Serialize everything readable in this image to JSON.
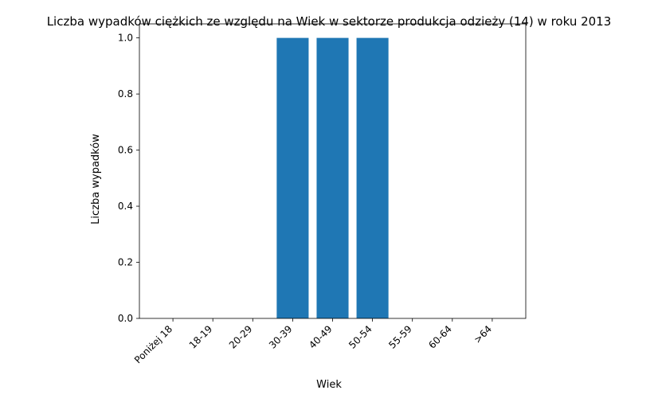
{
  "chart_data": {
    "type": "bar",
    "title": "Liczba wypadków ciężkich ze względu na Wiek w sektorze produkcja odzieży  (14)   w roku 2013",
    "xlabel": "Wiek",
    "ylabel": "Liczba wypadków",
    "categories": [
      "Poniżej 18",
      "18-19",
      "20-29",
      "30-39",
      "40-49",
      "50-54",
      "55-59",
      "60-64",
      ">64"
    ],
    "values": [
      0,
      0,
      0,
      1,
      1,
      1,
      0,
      0,
      0
    ],
    "ylim": [
      0,
      1.05
    ],
    "yticks": [
      "0.0",
      "0.2",
      "0.4",
      "0.6",
      "0.8",
      "1.0"
    ],
    "bar_color": "#1f77b4",
    "grid": false,
    "legend": "none"
  }
}
